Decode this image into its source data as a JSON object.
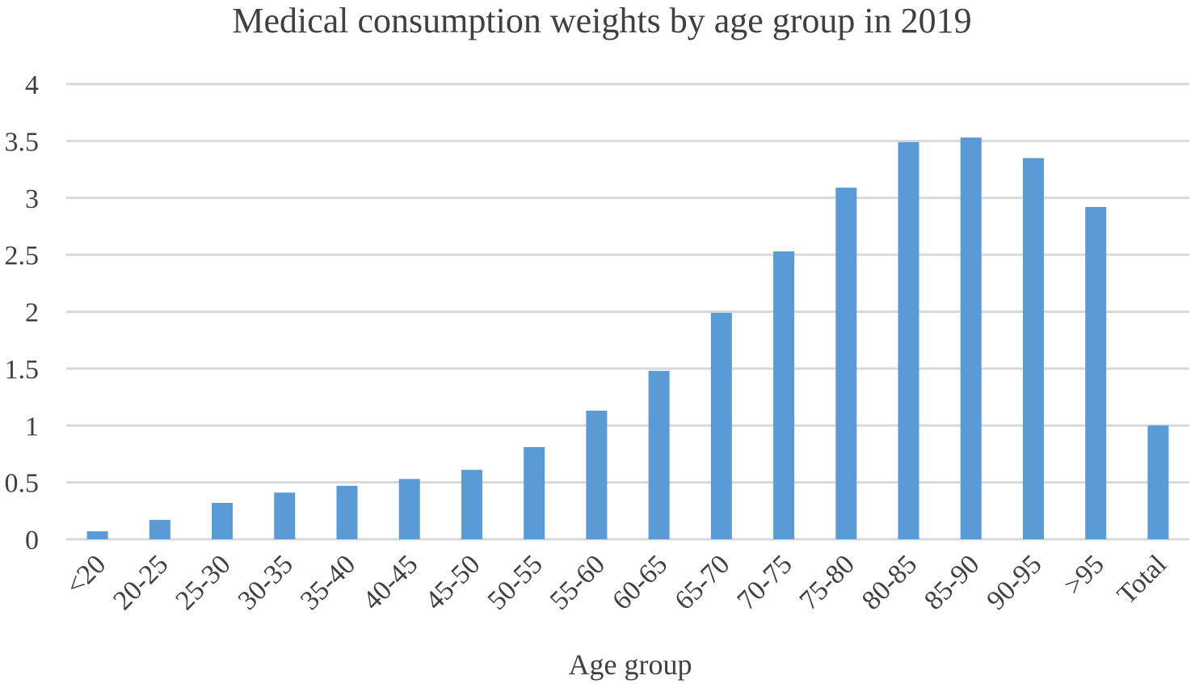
{
  "chart_data": {
    "type": "bar",
    "title": "Medical consumption weights by age group in 2019",
    "xlabel": "Age group",
    "ylabel": "",
    "ylim": [
      0,
      4
    ],
    "yticks": [
      0,
      0.5,
      1,
      1.5,
      2,
      2.5,
      3,
      3.5,
      4
    ],
    "ytick_labels": [
      "0",
      "0.5",
      "1",
      "1.5",
      "2",
      "2.5",
      "3",
      "3.5",
      "4"
    ],
    "grid": true,
    "bar_color": "#5b9bd5",
    "categories": [
      "<20",
      "20-25",
      "25-30",
      "30-35",
      "35-40",
      "40-45",
      "45-50",
      "50-55",
      "55-60",
      "60-65",
      "65-70",
      "70-75",
      "75-80",
      "80-85",
      "85-90",
      "90-95",
      ">95",
      "Total"
    ],
    "values": [
      0.07,
      0.17,
      0.32,
      0.41,
      0.47,
      0.53,
      0.61,
      0.81,
      1.13,
      1.48,
      1.99,
      2.53,
      3.09,
      3.49,
      3.53,
      3.35,
      2.92,
      1.0
    ]
  }
}
